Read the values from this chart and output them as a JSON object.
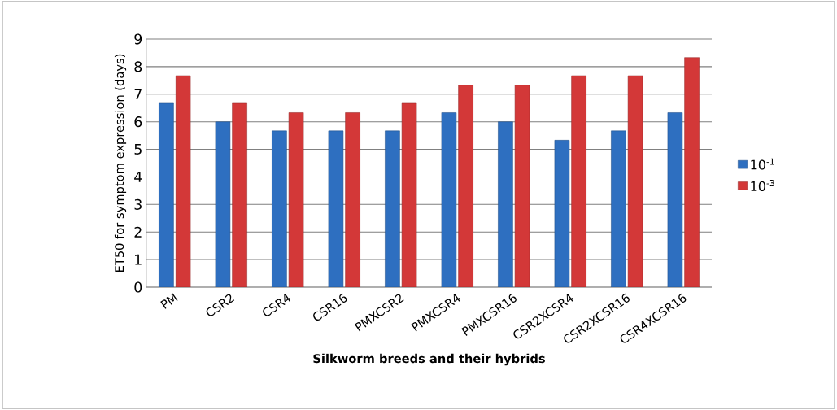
{
  "chart_data": {
    "type": "bar",
    "xlabel": "Silkworm breeds and their hybrids",
    "ylabel": "ET50 for symptom expression (days)",
    "categories": [
      "PM",
      "CSR2",
      "CSR4",
      "CSR16",
      "PMXCSR2",
      "PMXCSR4",
      "PMXCSR16",
      "CSR2XCSR4",
      "CSR2XCSR16",
      "CSR4XCSR16"
    ],
    "series": [
      {
        "name": "10$^{-1}$",
        "color": "#2e6fc0",
        "values": [
          6.67,
          6,
          5.67,
          5.67,
          5.67,
          6.33,
          6,
          5.33,
          5.67,
          6.33
        ]
      },
      {
        "name": "10$^{-3}$",
        "color": "#d33838",
        "values": [
          7.67,
          6.67,
          6.33,
          6.33,
          6.67,
          7.33,
          7.33,
          7.67,
          7.67,
          8.33
        ]
      }
    ],
    "ylim": [
      0,
      9
    ],
    "yticks": [
      0,
      1,
      2,
      3,
      4,
      5,
      6,
      7,
      8,
      9
    ],
    "grid": "y",
    "legend": "right"
  }
}
